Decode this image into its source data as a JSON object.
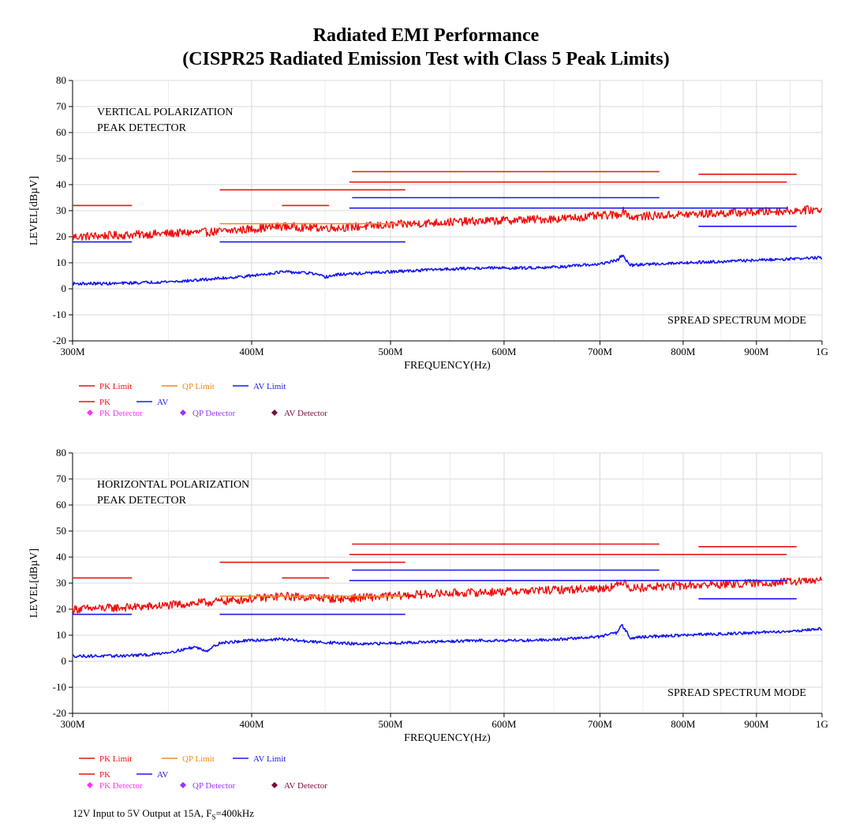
{
  "title": {
    "line1": "Radiated EMI Performance",
    "line2": "(CISPR25 Radiated Emission Test with Class 5 Peak Limits)"
  },
  "footnote": {
    "prefix": "12V Input to 5V Output at 15A, F",
    "sub": "S",
    "suffix": "=400kHz"
  },
  "chart_data": [
    {
      "type": "line",
      "xlabel": "FREQUENCY(Hz)",
      "ylabel": "LEVEL[dBµV]",
      "xscale": "log",
      "xlim": [
        300,
        1000
      ],
      "ylim": [
        -20,
        80
      ],
      "x_unit": "MHz",
      "grid": true,
      "x_ticks": [
        300,
        400,
        500,
        600,
        700,
        800,
        900,
        1000
      ],
      "x_tick_labels": [
        "300M",
        "400M",
        "500M",
        "600M",
        "700M",
        "800M",
        "900M",
        "1G"
      ],
      "y_ticks": [
        -20,
        -10,
        0,
        10,
        20,
        30,
        40,
        50,
        60,
        70,
        80
      ],
      "annotations": [
        "VERTICAL POLARIZATION",
        "PEAK DETECTOR",
        "SPREAD SPECTRUM MODE"
      ],
      "legend": {
        "row1": [
          "PK Limit",
          "QP Limit",
          "AV Limit"
        ],
        "row2": [
          "PK",
          "AV"
        ],
        "row3": [
          "PK Detector",
          "QP Detector",
          "AV Detector"
        ]
      },
      "limit_segments": [
        {
          "name": "PK Limit",
          "x": [
            300,
            330
          ],
          "y": 32
        },
        {
          "name": "PK Limit",
          "x": [
            380,
            512
          ],
          "y": 38
        },
        {
          "name": "PK Limit",
          "x": [
            420,
            453
          ],
          "y": 32
        },
        {
          "name": "PK Limit",
          "x": [
            470,
            770
          ],
          "y": 45
        },
        {
          "name": "PK Limit",
          "x": [
            468,
            945
          ],
          "y": 41
        },
        {
          "name": "PK Limit",
          "x": [
            820,
            960
          ],
          "y": 44
        },
        {
          "name": "QP Limit",
          "x": [
            380,
            512
          ],
          "y": 25
        },
        {
          "name": "AV Limit",
          "x": [
            300,
            330
          ],
          "y": 18
        },
        {
          "name": "AV Limit",
          "x": [
            380,
            512
          ],
          "y": 18
        },
        {
          "name": "AV Limit",
          "x": [
            470,
            770
          ],
          "y": 35
        },
        {
          "name": "AV Limit",
          "x": [
            468,
            945
          ],
          "y": 31
        },
        {
          "name": "AV Limit",
          "x": [
            820,
            960
          ],
          "y": 24
        }
      ],
      "series": [
        {
          "name": "PK",
          "x": [
            300,
            320,
            340,
            360,
            380,
            400,
            420,
            440,
            460,
            480,
            500,
            540,
            580,
            620,
            660,
            700,
            720,
            728,
            735,
            760,
            800,
            850,
            900,
            950,
            1000
          ],
          "y": [
            20,
            20.5,
            21,
            21.5,
            22,
            23,
            24,
            23.5,
            23.5,
            24,
            24.5,
            25.5,
            26,
            26.5,
            27,
            28,
            28.5,
            30,
            27.5,
            28,
            28.5,
            29,
            29.5,
            30,
            30.5
          ]
        },
        {
          "name": "AV",
          "x": [
            300,
            320,
            340,
            360,
            380,
            400,
            420,
            440,
            450,
            460,
            480,
            500,
            540,
            580,
            620,
            660,
            700,
            720,
            725,
            735,
            760,
            800,
            850,
            900,
            950,
            1000
          ],
          "y": [
            2,
            2,
            2.5,
            3,
            4,
            5,
            6.5,
            6,
            4.5,
            5.5,
            6,
            6.5,
            7.5,
            8,
            8,
            8.5,
            9.5,
            11,
            13,
            9,
            9.5,
            10,
            10.5,
            11,
            11.5,
            12
          ]
        }
      ]
    },
    {
      "type": "line",
      "xlabel": "FREQUENCY(Hz)",
      "ylabel": "LEVEL[dBµV]",
      "xscale": "log",
      "xlim": [
        300,
        1000
      ],
      "ylim": [
        -20,
        80
      ],
      "x_unit": "MHz",
      "grid": true,
      "x_ticks": [
        300,
        400,
        500,
        600,
        700,
        800,
        900,
        1000
      ],
      "x_tick_labels": [
        "300M",
        "400M",
        "500M",
        "600M",
        "700M",
        "800M",
        "900M",
        "1G"
      ],
      "y_ticks": [
        -20,
        -10,
        0,
        10,
        20,
        30,
        40,
        50,
        60,
        70,
        80
      ],
      "annotations": [
        "HORIZONTAL POLARIZATION",
        "PEAK DETECTOR",
        "SPREAD SPECTRUM MODE"
      ],
      "legend": {
        "row1": [
          "PK Limit",
          "QP Limit",
          "AV Limit"
        ],
        "row2": [
          "PK",
          "AV"
        ],
        "row3": [
          "PK Detector",
          "QP Detector",
          "AV Detector"
        ]
      },
      "limit_segments": [
        {
          "name": "PK Limit",
          "x": [
            300,
            330
          ],
          "y": 32
        },
        {
          "name": "PK Limit",
          "x": [
            380,
            512
          ],
          "y": 38
        },
        {
          "name": "PK Limit",
          "x": [
            420,
            453
          ],
          "y": 32
        },
        {
          "name": "PK Limit",
          "x": [
            470,
            770
          ],
          "y": 45
        },
        {
          "name": "PK Limit",
          "x": [
            468,
            945
          ],
          "y": 41
        },
        {
          "name": "PK Limit",
          "x": [
            820,
            960
          ],
          "y": 44
        },
        {
          "name": "QP Limit",
          "x": [
            380,
            512
          ],
          "y": 25
        },
        {
          "name": "AV Limit",
          "x": [
            300,
            330
          ],
          "y": 18
        },
        {
          "name": "AV Limit",
          "x": [
            380,
            512
          ],
          "y": 18
        },
        {
          "name": "AV Limit",
          "x": [
            470,
            770
          ],
          "y": 35
        },
        {
          "name": "AV Limit",
          "x": [
            468,
            945
          ],
          "y": 31
        },
        {
          "name": "AV Limit",
          "x": [
            820,
            960
          ],
          "y": 24
        }
      ],
      "series": [
        {
          "name": "PK",
          "x": [
            300,
            320,
            340,
            360,
            380,
            400,
            420,
            440,
            460,
            480,
            500,
            540,
            580,
            620,
            660,
            700,
            720,
            728,
            735,
            760,
            800,
            850,
            900,
            950,
            1000
          ],
          "y": [
            20,
            20.5,
            21,
            22,
            23,
            24,
            25,
            24.5,
            24,
            24.5,
            25,
            26,
            26.5,
            27,
            27.5,
            28,
            29,
            31,
            28,
            28.5,
            29,
            29.5,
            30,
            30.5,
            31
          ]
        },
        {
          "name": "AV",
          "x": [
            300,
            320,
            340,
            355,
            365,
            372,
            380,
            400,
            420,
            440,
            460,
            480,
            500,
            540,
            580,
            620,
            660,
            700,
            720,
            725,
            735,
            760,
            800,
            850,
            900,
            950,
            1000
          ],
          "y": [
            2,
            2,
            2.5,
            4,
            5.5,
            4,
            7,
            8,
            8.5,
            7.5,
            7,
            6.5,
            7,
            7.5,
            8,
            8,
            8.5,
            9.5,
            11,
            14,
            9,
            9.5,
            10,
            10.5,
            11,
            11.5,
            12.5
          ]
        }
      ]
    }
  ]
}
